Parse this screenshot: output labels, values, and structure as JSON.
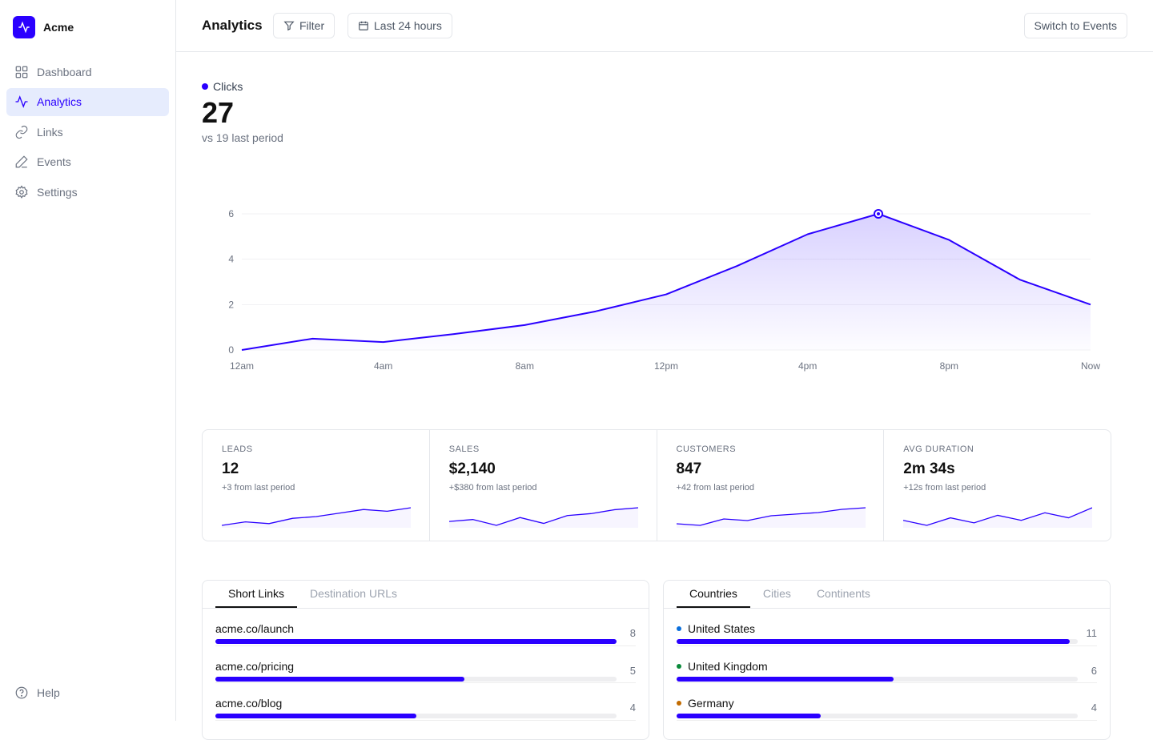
{
  "brand": {
    "name": "Acme"
  },
  "nav": [
    {
      "label": "Dashboard",
      "icon": "grid-icon"
    },
    {
      "label": "Analytics",
      "icon": "activity-icon",
      "active": true
    },
    {
      "label": "Links",
      "icon": "link-icon"
    },
    {
      "label": "Events",
      "icon": "pen-icon"
    },
    {
      "label": "Settings",
      "icon": "gear-icon"
    }
  ],
  "help": "Help",
  "header": {
    "title": "Analytics",
    "filter": "Filter",
    "range": "Last 24 hours",
    "switch": "Switch to Events"
  },
  "metric": {
    "label": "Clicks",
    "value": "27",
    "compare": "vs 19 last period"
  },
  "chart_data": {
    "type": "area",
    "title": "Clicks",
    "x": [
      "12am",
      "2am",
      "4am",
      "6am",
      "8am",
      "10am",
      "12pm",
      "2pm",
      "4pm",
      "6pm",
      "8pm",
      "10pm",
      "Now"
    ],
    "values": [
      0,
      0.5,
      0.35,
      0.7,
      1.1,
      1.7,
      2.45,
      3.7,
      5.1,
      6,
      4.85,
      3.1,
      2
    ],
    "xticks": [
      "12am",
      "4am",
      "8am",
      "12pm",
      "4pm",
      "8pm",
      "Now"
    ],
    "yticks": [
      0,
      2,
      4,
      6
    ],
    "ylim": [
      0,
      6
    ],
    "highlight_index": 9,
    "color": "#2a00ff"
  },
  "stats": [
    {
      "label": "LEADS",
      "value": "12",
      "delta": "+3 from last period",
      "spark": [
        2,
        4,
        3,
        6,
        7,
        9,
        11,
        10,
        12
      ]
    },
    {
      "label": "SALES",
      "value": "$2,140",
      "delta": "+$380 from last period",
      "spark": [
        5,
        6,
        3,
        7,
        4,
        8,
        9,
        11,
        12
      ]
    },
    {
      "label": "CUSTOMERS",
      "value": "847",
      "delta": "+42 from last period",
      "spark": [
        2,
        1,
        5,
        4,
        7,
        8,
        9,
        11,
        12
      ]
    },
    {
      "label": "AVG DURATION",
      "value": "2m 34s",
      "delta": "+12s from last period",
      "spark": [
        7,
        5,
        8,
        6,
        9,
        7,
        10,
        8,
        12
      ]
    }
  ],
  "links": {
    "tabs": [
      "Short Links",
      "Destination URLs"
    ],
    "rows": [
      {
        "name": "acme.co/launch",
        "count": "8",
        "pct": 100
      },
      {
        "name": "acme.co/pricing",
        "count": "5",
        "pct": 62
      },
      {
        "name": "acme.co/blog",
        "count": "4",
        "pct": 50
      }
    ]
  },
  "geo": {
    "tabs": [
      "Countries",
      "Cities",
      "Continents"
    ],
    "rows": [
      {
        "name": "United States",
        "count": "11",
        "pct": 98,
        "color": "#0a6fdc"
      },
      {
        "name": "United Kingdom",
        "count": "6",
        "pct": 54,
        "color": "#0a8a3a"
      },
      {
        "name": "Germany",
        "count": "4",
        "pct": 36,
        "color": "#c26b00"
      }
    ]
  }
}
